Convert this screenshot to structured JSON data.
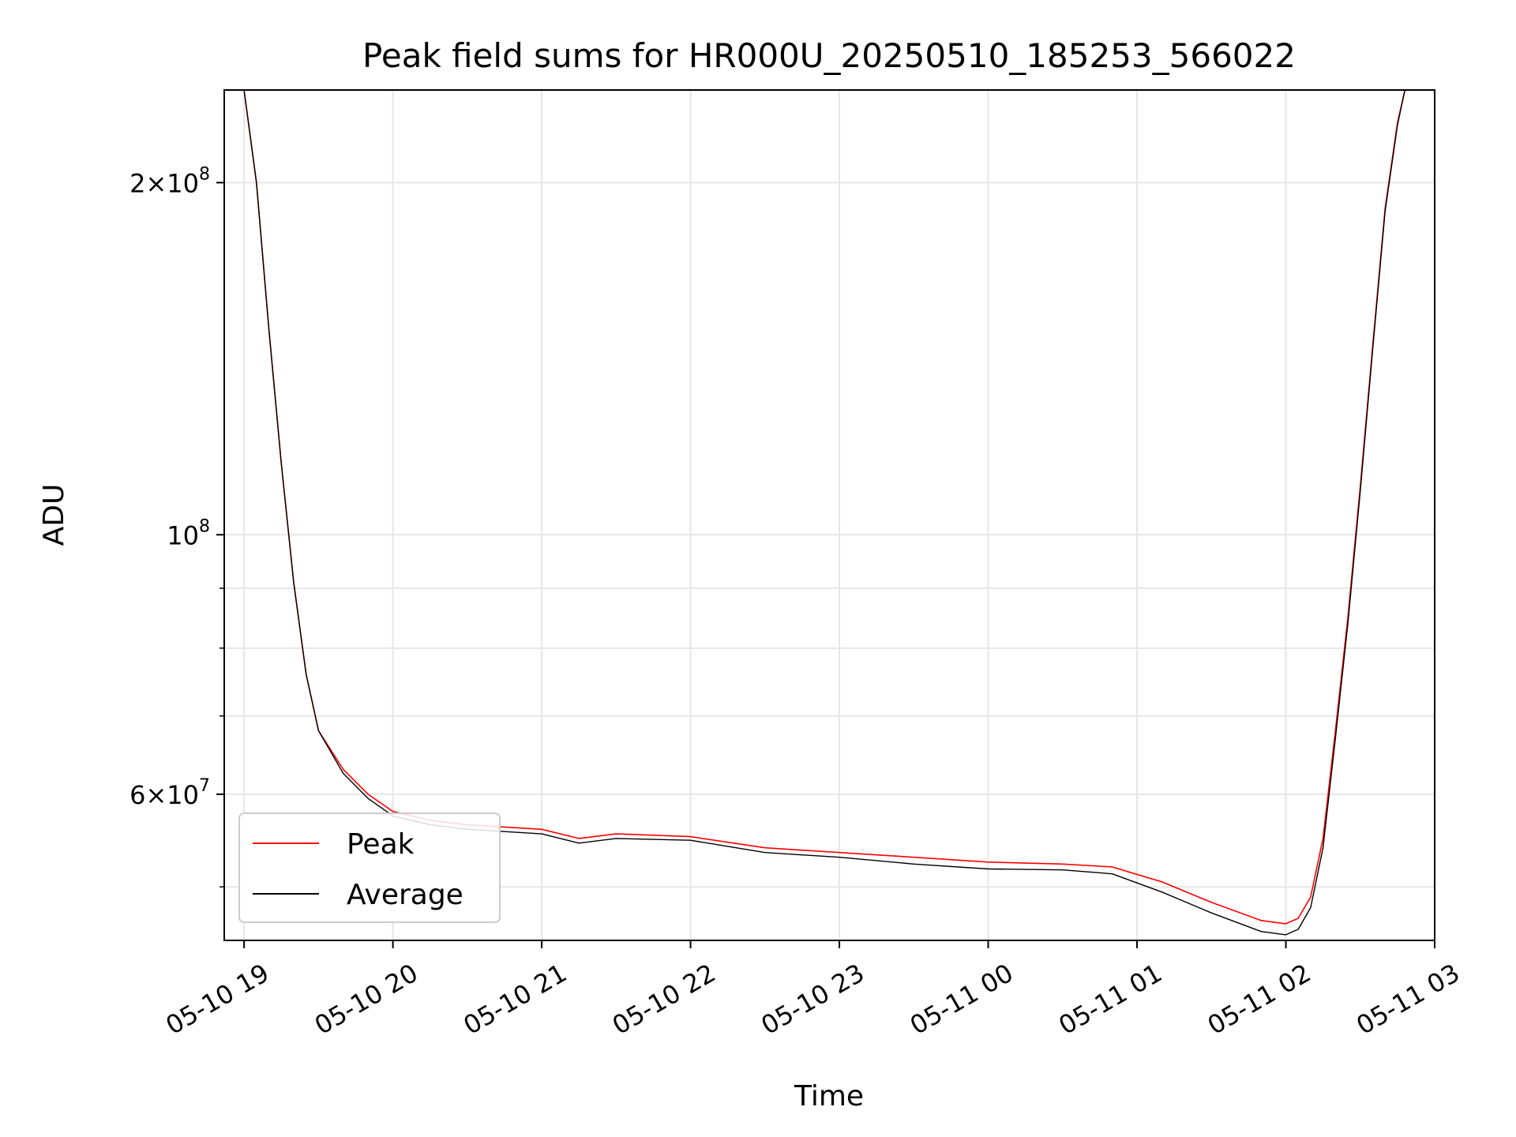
{
  "chart_data": {
    "type": "line",
    "title": "Peak field sums for HR000U_20250510_185253_566022",
    "xlabel": "Time",
    "ylabel": "ADU",
    "yscale": "log",
    "ylim": [
      45000000,
      240000000
    ],
    "xlim": [
      "05-10 18:52",
      "05-11 03:00"
    ],
    "grid": true,
    "legend_position": "lower-left",
    "x_ticks": [
      "05-10 19",
      "05-10 20",
      "05-10 21",
      "05-10 22",
      "05-10 23",
      "05-11 00",
      "05-11 01",
      "05-11 02",
      "05-11 03"
    ],
    "y_ticks": [
      {
        "value": 200000000,
        "mantissa": "2",
        "exponent": "8"
      },
      {
        "value": 100000000,
        "mantissa": "",
        "exponent": "8"
      },
      {
        "value": 60000000,
        "mantissa": "6",
        "exponent": "7"
      }
    ],
    "series": [
      {
        "name": "Peak",
        "color": "#ff0000",
        "x": [
          "05-10 19:00",
          "05-10 19:05",
          "05-10 19:10",
          "05-10 19:15",
          "05-10 19:20",
          "05-10 19:25",
          "05-10 19:30",
          "05-10 19:40",
          "05-10 19:50",
          "05-10 20:00",
          "05-10 20:15",
          "05-10 20:30",
          "05-10 21:00",
          "05-10 21:15",
          "05-10 21:30",
          "05-10 22:00",
          "05-10 22:30",
          "05-10 23:00",
          "05-10 23:30",
          "05-11 00:00",
          "05-11 00:30",
          "05-11 00:50",
          "05-11 01:10",
          "05-11 01:30",
          "05-11 01:50",
          "05-11 02:00",
          "05-11 02:05",
          "05-11 02:10",
          "05-11 02:15",
          "05-11 02:20",
          "05-11 02:25",
          "05-11 02:30",
          "05-11 02:35",
          "05-11 02:40",
          "05-11 02:45",
          "05-11 02:48"
        ],
        "values": [
          240000000,
          200000000,
          150000000,
          115000000,
          91000000,
          76000000,
          68000000,
          63000000,
          60000000,
          58000000,
          57000000,
          56500000,
          56000000,
          55000000,
          55500000,
          55200000,
          54000000,
          53500000,
          53000000,
          52500000,
          52300000,
          52000000,
          50500000,
          48500000,
          46800000,
          46500000,
          47000000,
          49000000,
          55000000,
          68000000,
          85000000,
          110000000,
          145000000,
          190000000,
          225000000,
          240000000
        ]
      },
      {
        "name": "Average",
        "color": "#000000",
        "x": [
          "05-10 19:00",
          "05-10 19:05",
          "05-10 19:10",
          "05-10 19:15",
          "05-10 19:20",
          "05-10 19:25",
          "05-10 19:30",
          "05-10 19:40",
          "05-10 19:50",
          "05-10 20:00",
          "05-10 20:15",
          "05-10 20:30",
          "05-10 21:00",
          "05-10 21:15",
          "05-10 21:30",
          "05-10 22:00",
          "05-10 22:30",
          "05-10 23:00",
          "05-10 23:30",
          "05-11 00:00",
          "05-11 00:30",
          "05-11 00:50",
          "05-11 01:10",
          "05-11 01:30",
          "05-11 01:50",
          "05-11 02:00",
          "05-11 02:05",
          "05-11 02:10",
          "05-11 02:15",
          "05-11 02:20",
          "05-11 02:25",
          "05-11 02:30",
          "05-11 02:35",
          "05-11 02:40",
          "05-11 02:45",
          "05-11 02:48"
        ],
        "values": [
          240000000,
          200000000,
          150000000,
          115000000,
          91000000,
          76000000,
          68000000,
          62500000,
          59500000,
          57500000,
          56500000,
          56000000,
          55500000,
          54500000,
          55000000,
          54800000,
          53500000,
          53000000,
          52300000,
          51800000,
          51700000,
          51300000,
          49500000,
          47500000,
          45800000,
          45500000,
          46000000,
          48000000,
          54000000,
          67000000,
          84000000,
          109000000,
          144000000,
          189000000,
          224000000,
          240000000
        ]
      }
    ]
  }
}
